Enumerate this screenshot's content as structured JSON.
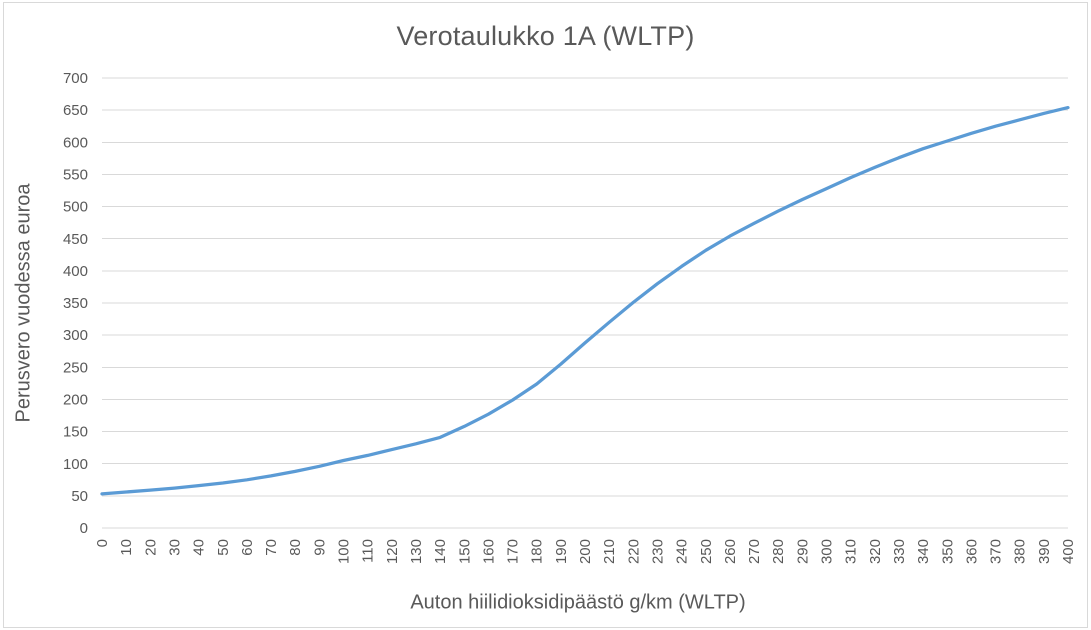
{
  "chart_data": {
    "type": "line",
    "title": "Verotaulukko 1A (WLTP)",
    "xlabel": "Auton hiilidioksidipäästö g/km (WLTP)",
    "ylabel": "Perusvero vuodessa euroa",
    "x": [
      0,
      10,
      20,
      30,
      40,
      50,
      60,
      70,
      80,
      90,
      100,
      110,
      120,
      130,
      140,
      150,
      160,
      170,
      180,
      190,
      200,
      210,
      220,
      230,
      240,
      250,
      260,
      270,
      280,
      290,
      300,
      310,
      320,
      330,
      340,
      350,
      360,
      370,
      380,
      390,
      400
    ],
    "values": [
      53,
      56,
      59,
      62,
      66,
      70,
      75,
      81,
      88,
      96,
      105,
      113,
      122,
      131,
      141,
      158,
      177,
      199,
      224,
      255,
      288,
      320,
      351,
      380,
      407,
      432,
      454,
      474,
      493,
      511,
      528,
      545,
      561,
      576,
      590,
      602,
      614,
      625,
      635,
      645,
      654
    ],
    "xlim": [
      0,
      400
    ],
    "ylim": [
      0,
      700
    ],
    "yticks": [
      0,
      50,
      100,
      150,
      200,
      250,
      300,
      350,
      400,
      450,
      500,
      550,
      600,
      650,
      700
    ],
    "xtick_step": 10,
    "xtick_rotation_deg": -90,
    "grid": "horizontal",
    "legend": "none",
    "markers": "none",
    "colors": {
      "line": "#5B9BD5",
      "gridline": "#D9D9D9",
      "axis_line": "#D9D9D9",
      "text": "#595959",
      "border": "#D9D9D9",
      "background": "#FFFFFF"
    }
  }
}
